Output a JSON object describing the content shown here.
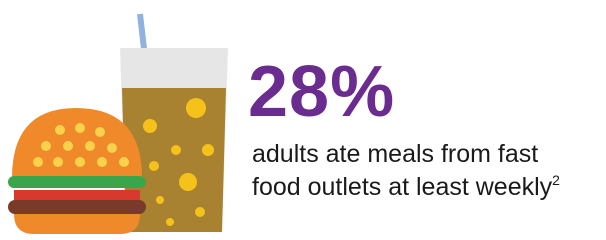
{
  "stat": {
    "value": "28%",
    "description_lines": [
      "adults ate meals from fast",
      "food outlets at least weekly"
    ],
    "footnote": "2"
  }
}
